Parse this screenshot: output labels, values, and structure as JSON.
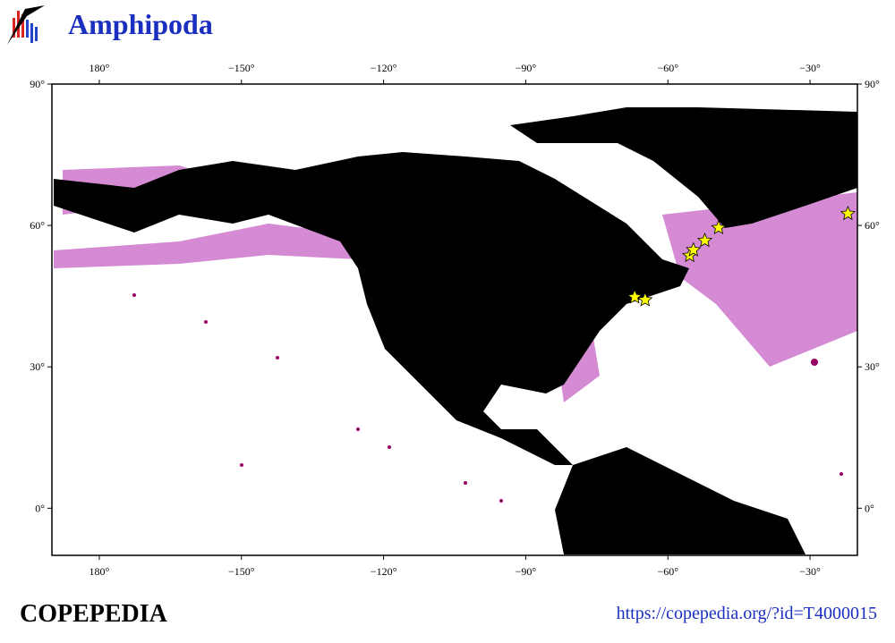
{
  "header": {
    "title": "Amphipoda"
  },
  "map": {
    "xlim": [
      -190,
      -20
    ],
    "ylim": [
      -10,
      90
    ],
    "xticks": [
      {
        "value": -180,
        "label": "180°"
      },
      {
        "value": -150,
        "label": "−150°"
      },
      {
        "value": -120,
        "label": "−120°"
      },
      {
        "value": -90,
        "label": "−90°"
      },
      {
        "value": -60,
        "label": "−60°"
      },
      {
        "value": -30,
        "label": "−30°"
      }
    ],
    "yticks": [
      {
        "value": 0,
        "label": "0°"
      },
      {
        "value": 30,
        "label": "30°"
      },
      {
        "value": 60,
        "label": "60°"
      },
      {
        "value": 90,
        "label": "90°"
      }
    ],
    "stars": {
      "lon": [
        -67,
        -64.8,
        -55.4,
        -54.6,
        -52.2,
        -49.3,
        -22
      ],
      "lat": [
        44.8,
        44.2,
        53.6,
        54.8,
        56.8,
        59.5,
        62.5
      ],
      "color": "#ffff00"
    }
  },
  "footer": {
    "left": "COPEPEDIA",
    "right": "https://copepedia.org/?id=T4000015"
  }
}
